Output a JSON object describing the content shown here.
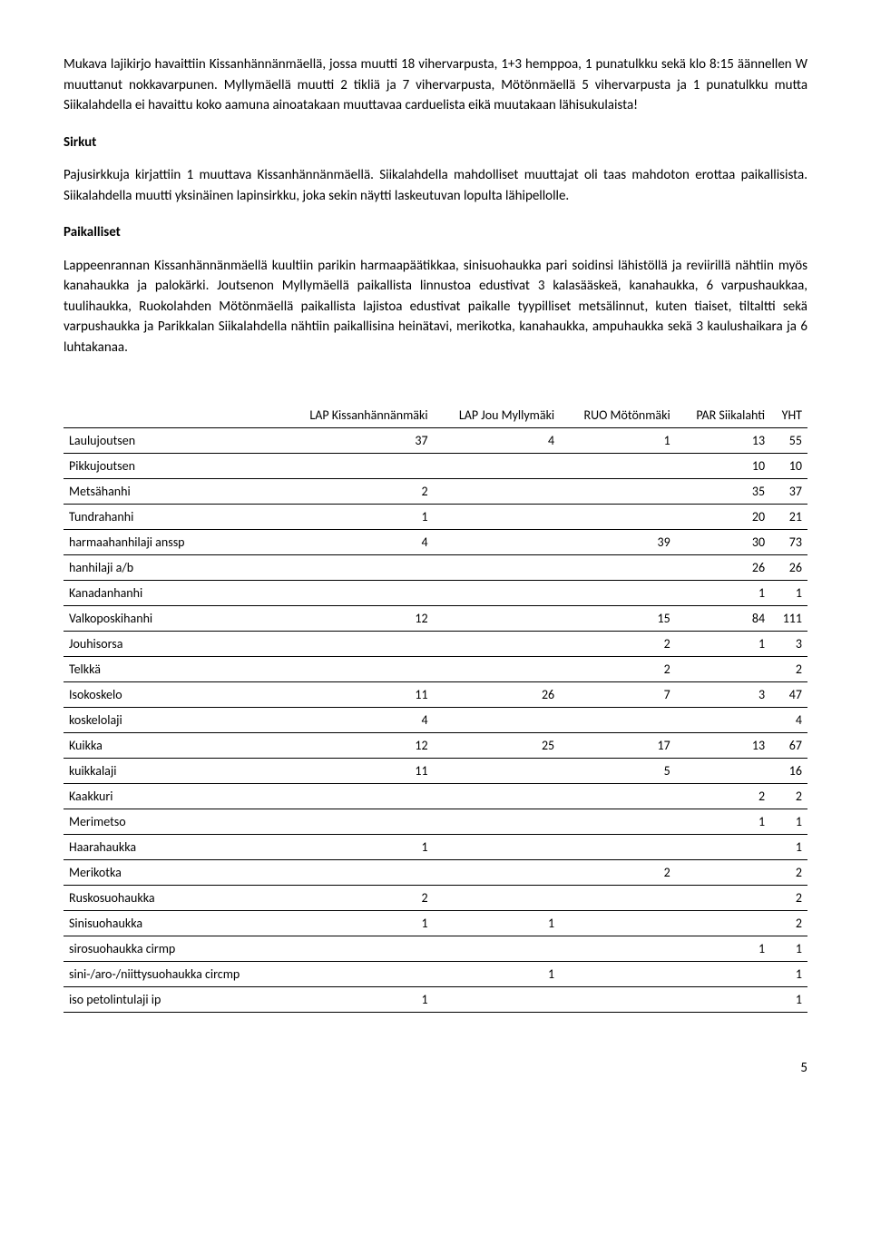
{
  "paragraphs": {
    "p1": "Mukava lajikirjo havaittiin Kissanhännänmäellä, jossa muutti 18 vihervarpusta, 1+3 hemppoa, 1 punatulkku sekä klo 8:15 äännellen W muuttanut nokkavarpunen. Myllymäellä muutti 2 tikliä ja 7 vihervarpusta, Mötönmäellä 5 vihervarpusta ja 1 punatulkku mutta Siikalahdella ei havaittu koko aamuna ainoatakaan muuttavaa carduelista eikä muutakaan lähisukulaista!",
    "h1": "Sirkut",
    "p2": "Pajusirkkuja kirjattiin 1 muuttava Kissanhännänmäellä. Siikalahdella mahdolliset muuttajat oli taas mahdoton erottaa paikallisista. Siikalahdella muutti yksinäinen lapinsirkku, joka sekin näytti laskeutuvan lopulta lähipellolle.",
    "h2": "Paikalliset",
    "p3": "Lappeenrannan Kissanhännänmäellä kuultiin parikin harmaapäätikkaa, sinisuohaukka pari soidinsi lähistöllä ja reviirillä nähtiin myös kanahaukka ja palokärki. Joutsenon Myllymäellä paikallista linnustoa edustivat 3 kalasääskeä, kanahaukka, 6 varpushaukkaa, tuulihaukka, Ruokolahden Mötönmäellä paikallista lajistoa edustivat paikalle tyypilliset metsälinnut, kuten tiaiset, tiltaltti sekä varpushaukka ja Parikkalan Siikalahdella nähtiin paikallisina heinätavi, merikotka, kanahaukka, ampuhaukka sekä 3 kaulushaikara ja 6 luhtakanaa."
  },
  "table": {
    "headers": [
      "",
      "LAP Kissanhännänmäki",
      "LAP Jou Myllymäki",
      "RUO Mötönmäki",
      "PAR Siikalahti",
      "YHT"
    ],
    "rows": [
      [
        "Laulujoutsen",
        "37",
        "4",
        "1",
        "13",
        "55"
      ],
      [
        "Pikkujoutsen",
        "",
        "",
        "",
        "10",
        "10"
      ],
      [
        "Metsähanhi",
        "2",
        "",
        "",
        "35",
        "37"
      ],
      [
        "Tundrahanhi",
        "1",
        "",
        "",
        "20",
        "21"
      ],
      [
        "harmaahanhilaji anssp",
        "4",
        "",
        "39",
        "30",
        "73"
      ],
      [
        "hanhilaji a/b",
        "",
        "",
        "",
        "26",
        "26"
      ],
      [
        "Kanadanhanhi",
        "",
        "",
        "",
        "1",
        "1"
      ],
      [
        "Valkoposkihanhi",
        "12",
        "",
        "15",
        "84",
        "111"
      ],
      [
        "Jouhisorsa",
        "",
        "",
        "2",
        "1",
        "3"
      ],
      [
        "Telkkä",
        "",
        "",
        "2",
        "",
        "2"
      ],
      [
        "Isokoskelo",
        "11",
        "26",
        "7",
        "3",
        "47"
      ],
      [
        "koskelolaji",
        "4",
        "",
        "",
        "",
        "4"
      ],
      [
        "Kuikka",
        "12",
        "25",
        "17",
        "13",
        "67"
      ],
      [
        "kuikkalaji",
        "11",
        "",
        "5",
        "",
        "16"
      ],
      [
        "Kaakkuri",
        "",
        "",
        "",
        "2",
        "2"
      ],
      [
        "Merimetso",
        "",
        "",
        "",
        "1",
        "1"
      ],
      [
        "Haarahaukka",
        "1",
        "",
        "",
        "",
        "1"
      ],
      [
        "Merikotka",
        "",
        "",
        "2",
        "",
        "2"
      ],
      [
        "Ruskosuohaukka",
        "2",
        "",
        "",
        "",
        "2"
      ],
      [
        "Sinisuohaukka",
        "1",
        "1",
        "",
        "",
        "2"
      ],
      [
        "sirosuohaukka cirmp",
        "",
        "",
        "",
        "1",
        "1"
      ],
      [
        "sini-/aro-/niittysuohaukka circmp",
        "",
        "1",
        "",
        "",
        "1"
      ],
      [
        "iso petolintulaji ip",
        "1",
        "",
        "",
        "",
        "1"
      ]
    ]
  },
  "page_number": "5"
}
